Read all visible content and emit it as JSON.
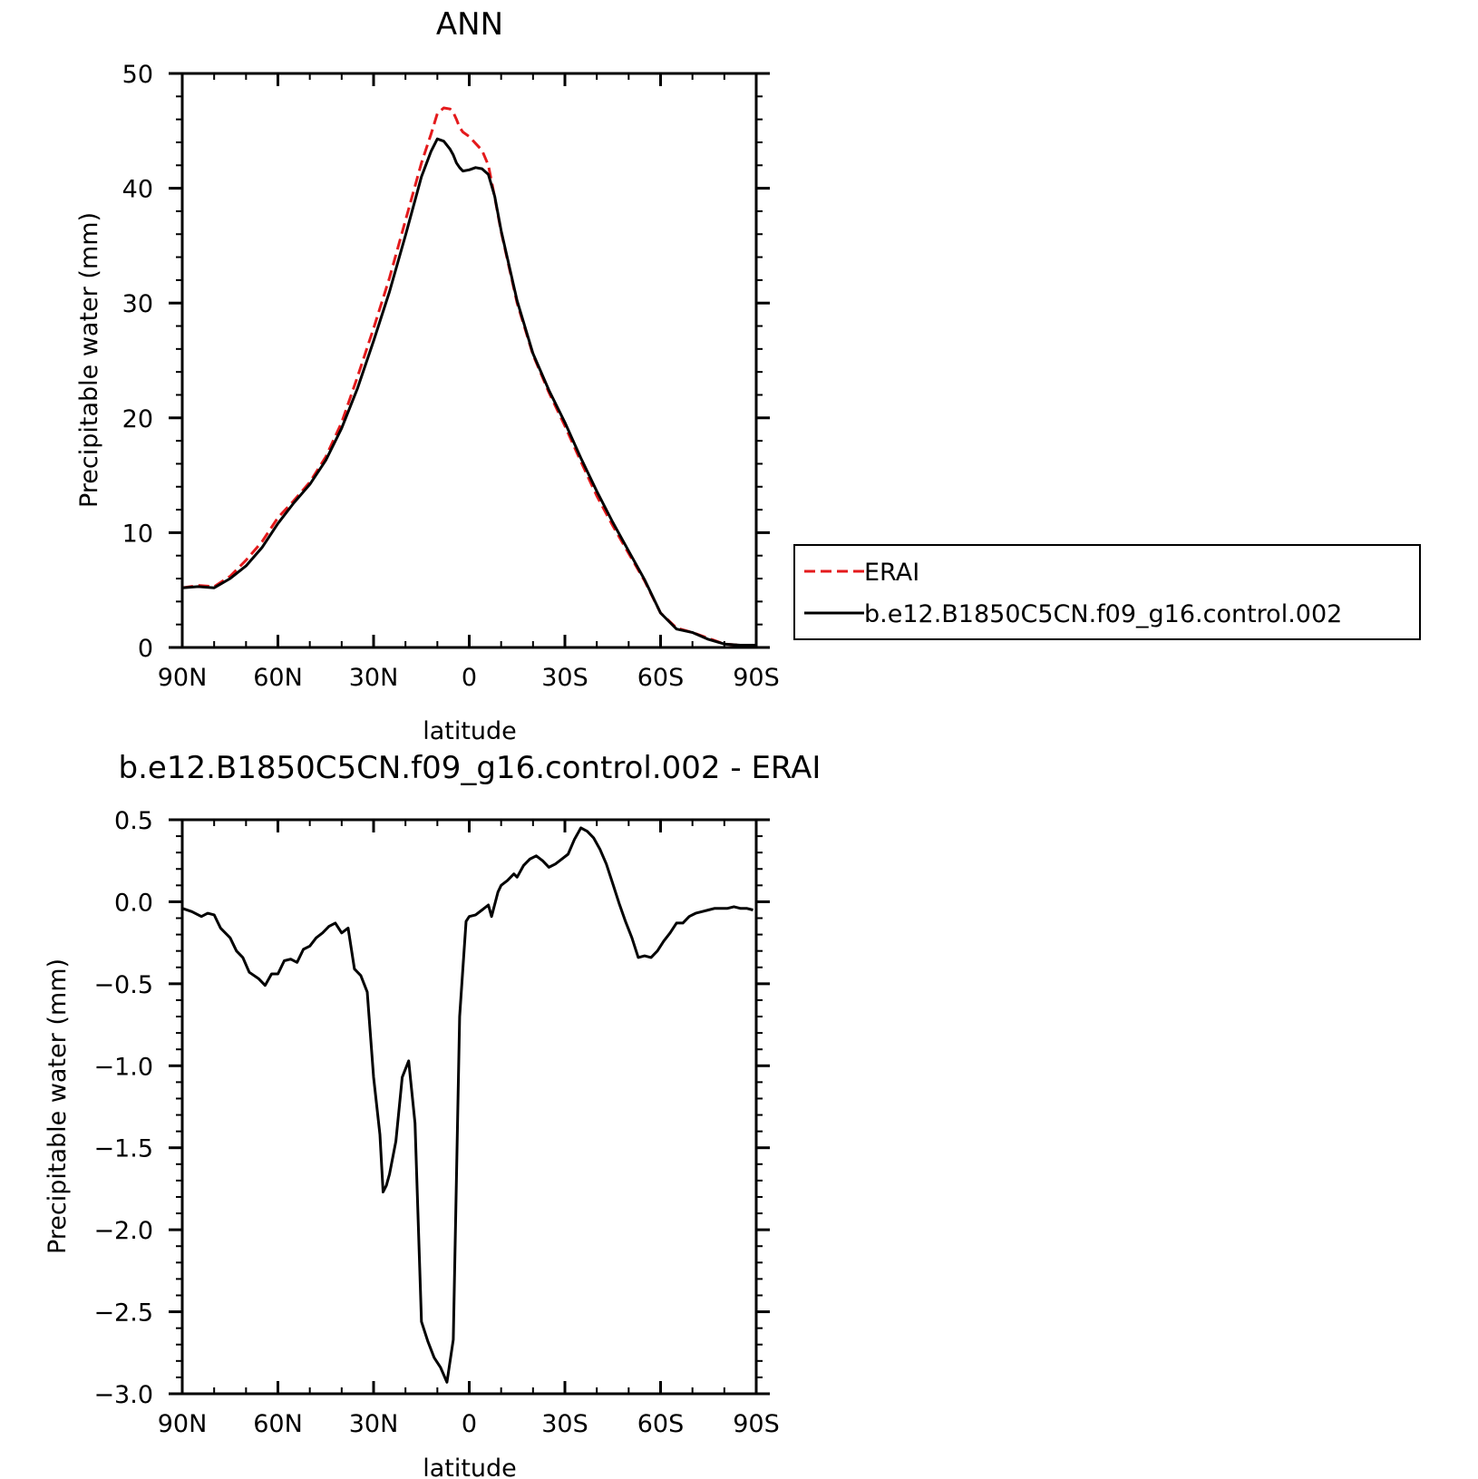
{
  "chart_data": [
    {
      "type": "line",
      "title": "ANN",
      "xlabel": "latitude",
      "ylabel": "Precipitable water (mm)",
      "xlim": [
        90,
        -90
      ],
      "ylim": [
        0,
        50
      ],
      "xticks": [
        {
          "value": 90,
          "label": "90N"
        },
        {
          "value": 60,
          "label": "60N"
        },
        {
          "value": 30,
          "label": "30N"
        },
        {
          "value": 0,
          "label": "0"
        },
        {
          "value": -30,
          "label": "30S"
        },
        {
          "value": -60,
          "label": "60S"
        },
        {
          "value": -90,
          "label": "90S"
        }
      ],
      "yticks": [
        {
          "value": 0,
          "label": "0"
        },
        {
          "value": 10,
          "label": "10"
        },
        {
          "value": 20,
          "label": "20"
        },
        {
          "value": 30,
          "label": "30"
        },
        {
          "value": 40,
          "label": "40"
        },
        {
          "value": 50,
          "label": "50"
        }
      ],
      "legend": {
        "placement": "right"
      },
      "series": [
        {
          "name": "ERAI",
          "color": "#e41a1c",
          "dash": "dashed",
          "x": [
            90,
            85,
            80,
            75,
            70,
            65,
            60,
            55,
            50,
            45,
            40,
            35,
            30,
            25,
            20,
            15,
            12,
            10,
            8,
            6,
            5,
            4,
            3,
            2,
            0,
            -2,
            -4,
            -6,
            -8,
            -10,
            -15,
            -20,
            -25,
            -30,
            -35,
            -40,
            -45,
            -50,
            -55,
            -60,
            -65,
            -70,
            -75,
            -80,
            -85,
            -90
          ],
          "values": [
            5.2,
            5.4,
            5.3,
            6.2,
            7.6,
            9.2,
            11.3,
            12.8,
            14.4,
            16.6,
            19.6,
            23.6,
            27.8,
            32.2,
            37.2,
            42.2,
            44.7,
            46.5,
            47.0,
            46.9,
            46.6,
            46.0,
            45.3,
            44.9,
            44.5,
            43.9,
            43.3,
            42.0,
            39.2,
            36.2,
            30.0,
            25.5,
            22.2,
            19.3,
            16.2,
            13.2,
            10.6,
            8.2,
            5.8,
            3.0,
            1.7,
            1.3,
            0.8,
            0.3,
            0.2,
            0.2
          ]
        },
        {
          "name": "b.e12.B1850C5CN.f09_g16.control.002",
          "color": "#000000",
          "dash": "solid",
          "x": [
            90,
            85,
            80,
            75,
            70,
            65,
            60,
            55,
            50,
            45,
            40,
            35,
            30,
            25,
            20,
            15,
            12,
            10,
            8,
            6,
            5,
            4,
            3,
            2,
            0,
            -2,
            -4,
            -6,
            -8,
            -10,
            -15,
            -20,
            -25,
            -30,
            -35,
            -40,
            -45,
            -50,
            -55,
            -60,
            -65,
            -70,
            -75,
            -80,
            -85,
            -90
          ],
          "values": [
            5.2,
            5.3,
            5.2,
            6.0,
            7.1,
            8.7,
            10.8,
            12.6,
            14.2,
            16.3,
            19.1,
            22.6,
            26.7,
            31.0,
            35.9,
            41.0,
            43.2,
            44.3,
            44.1,
            43.4,
            42.9,
            42.2,
            41.8,
            41.5,
            41.6,
            41.8,
            41.7,
            41.2,
            39.3,
            36.3,
            30.2,
            25.6,
            22.4,
            19.6,
            16.5,
            13.6,
            10.9,
            8.4,
            5.9,
            3.0,
            1.6,
            1.3,
            0.7,
            0.3,
            0.2,
            0.2
          ]
        }
      ]
    },
    {
      "type": "line",
      "title": "b.e12.B1850C5CN.f09_g16.control.002 - ERAI",
      "xlabel": "latitude",
      "ylabel": "Precipitable water (mm)",
      "xlim": [
        90,
        -90
      ],
      "ylim": [
        -3.0,
        0.5
      ],
      "xticks": [
        {
          "value": 90,
          "label": "90N"
        },
        {
          "value": 60,
          "label": "60N"
        },
        {
          "value": 30,
          "label": "30N"
        },
        {
          "value": 0,
          "label": "0"
        },
        {
          "value": -30,
          "label": "30S"
        },
        {
          "value": -60,
          "label": "60S"
        },
        {
          "value": -90,
          "label": "90S"
        }
      ],
      "yticks": [
        {
          "value": 0.5,
          "label": "0.5"
        },
        {
          "value": 0.0,
          "label": "0.0"
        },
        {
          "value": -0.5,
          "label": "−0.5"
        },
        {
          "value": -1.0,
          "label": "−1.0"
        },
        {
          "value": -1.5,
          "label": "−1.5"
        },
        {
          "value": -2.0,
          "label": "−2.0"
        },
        {
          "value": -2.5,
          "label": "−2.5"
        },
        {
          "value": -3.0,
          "label": "−3.0"
        }
      ],
      "series": [
        {
          "color": "#000000",
          "dash": "solid",
          "x": [
            90,
            87,
            84,
            82,
            80,
            78,
            75,
            73,
            71,
            69,
            66,
            64,
            62,
            60,
            58,
            56,
            54,
            52,
            50,
            48,
            46,
            44,
            42,
            40,
            38,
            36,
            34,
            32,
            30,
            28,
            27,
            26,
            25,
            23,
            21,
            19,
            17,
            15,
            13,
            11,
            9,
            7,
            5,
            3,
            1,
            0,
            -2,
            -4,
            -6,
            -7,
            -9,
            -10,
            -12,
            -14,
            -15,
            -17,
            -19,
            -21,
            -23,
            -25,
            -27,
            -29,
            -31,
            -33,
            -35,
            -37,
            -39,
            -41,
            -43,
            -45,
            -47,
            -49,
            -51,
            -53,
            -55,
            -57,
            -59,
            -61,
            -63,
            -65,
            -67,
            -69,
            -71,
            -73,
            -75,
            -77,
            -79,
            -81,
            -83,
            -85,
            -87,
            -89
          ],
          "values": [
            -0.04,
            -0.06,
            -0.09,
            -0.07,
            -0.08,
            -0.16,
            -0.22,
            -0.3,
            -0.34,
            -0.43,
            -0.47,
            -0.51,
            -0.44,
            -0.44,
            -0.36,
            -0.35,
            -0.37,
            -0.29,
            -0.27,
            -0.22,
            -0.19,
            -0.15,
            -0.13,
            -0.19,
            -0.16,
            -0.41,
            -0.45,
            -0.55,
            -1.07,
            -1.42,
            -1.77,
            -1.73,
            -1.66,
            -1.46,
            -1.07,
            -0.97,
            -1.35,
            -2.56,
            -2.68,
            -2.78,
            -2.84,
            -2.93,
            -2.67,
            -0.7,
            -0.12,
            -0.09,
            -0.08,
            -0.05,
            -0.02,
            -0.09,
            0.06,
            0.1,
            0.13,
            0.17,
            0.15,
            0.22,
            0.26,
            0.28,
            0.25,
            0.21,
            0.23,
            0.26,
            0.29,
            0.38,
            0.45,
            0.43,
            0.39,
            0.32,
            0.23,
            0.11,
            -0.01,
            -0.12,
            -0.22,
            -0.34,
            -0.33,
            -0.34,
            -0.3,
            -0.24,
            -0.19,
            -0.13,
            -0.13,
            -0.09,
            -0.07,
            -0.06,
            -0.05,
            -0.04,
            -0.04,
            -0.04,
            -0.03,
            -0.04,
            -0.04,
            -0.05
          ]
        }
      ]
    }
  ]
}
